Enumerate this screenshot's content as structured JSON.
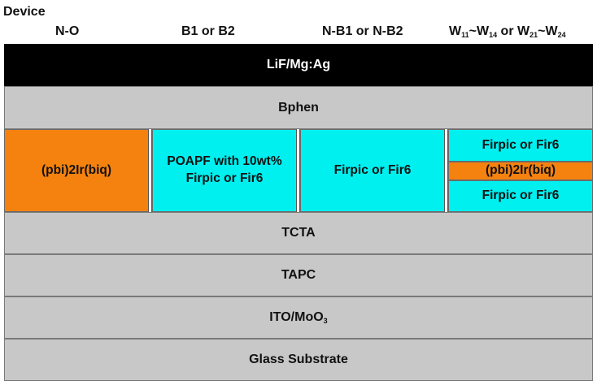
{
  "title": "Device",
  "columns": {
    "col1": "N-O",
    "col2": "B1 or B2",
    "col3": "N-B1 or N-B2",
    "col4": {
      "w1": "W",
      "s1": "11",
      "tilde1": "~W",
      "s2": "14",
      "or": " or W",
      "s3": "21",
      "tilde2": "~W",
      "s4": "24"
    }
  },
  "layers": {
    "cathode": "LiF/Mg:Ag",
    "etl": "Bphen",
    "tcta": "TCTA",
    "tapc": "TAPC",
    "ito": {
      "main": "ITO/MoO",
      "sub": "3"
    },
    "glass": "Glass Substrate"
  },
  "eml": {
    "no": "(pbi)2Ir(biq)",
    "b": {
      "line1": "POAPF with 10wt%",
      "line2": "Firpic or Fir6"
    },
    "nb": "Firpic or Fir6",
    "w": {
      "top": "Firpic or Fir6",
      "middle": "(pbi)2Ir(biq)",
      "bottom": "Firpic or Fir6"
    }
  },
  "colors": {
    "orange": "#f5820f",
    "cyan": "#00f0f0",
    "gray": "#c8c8c8",
    "black": "#000000"
  }
}
